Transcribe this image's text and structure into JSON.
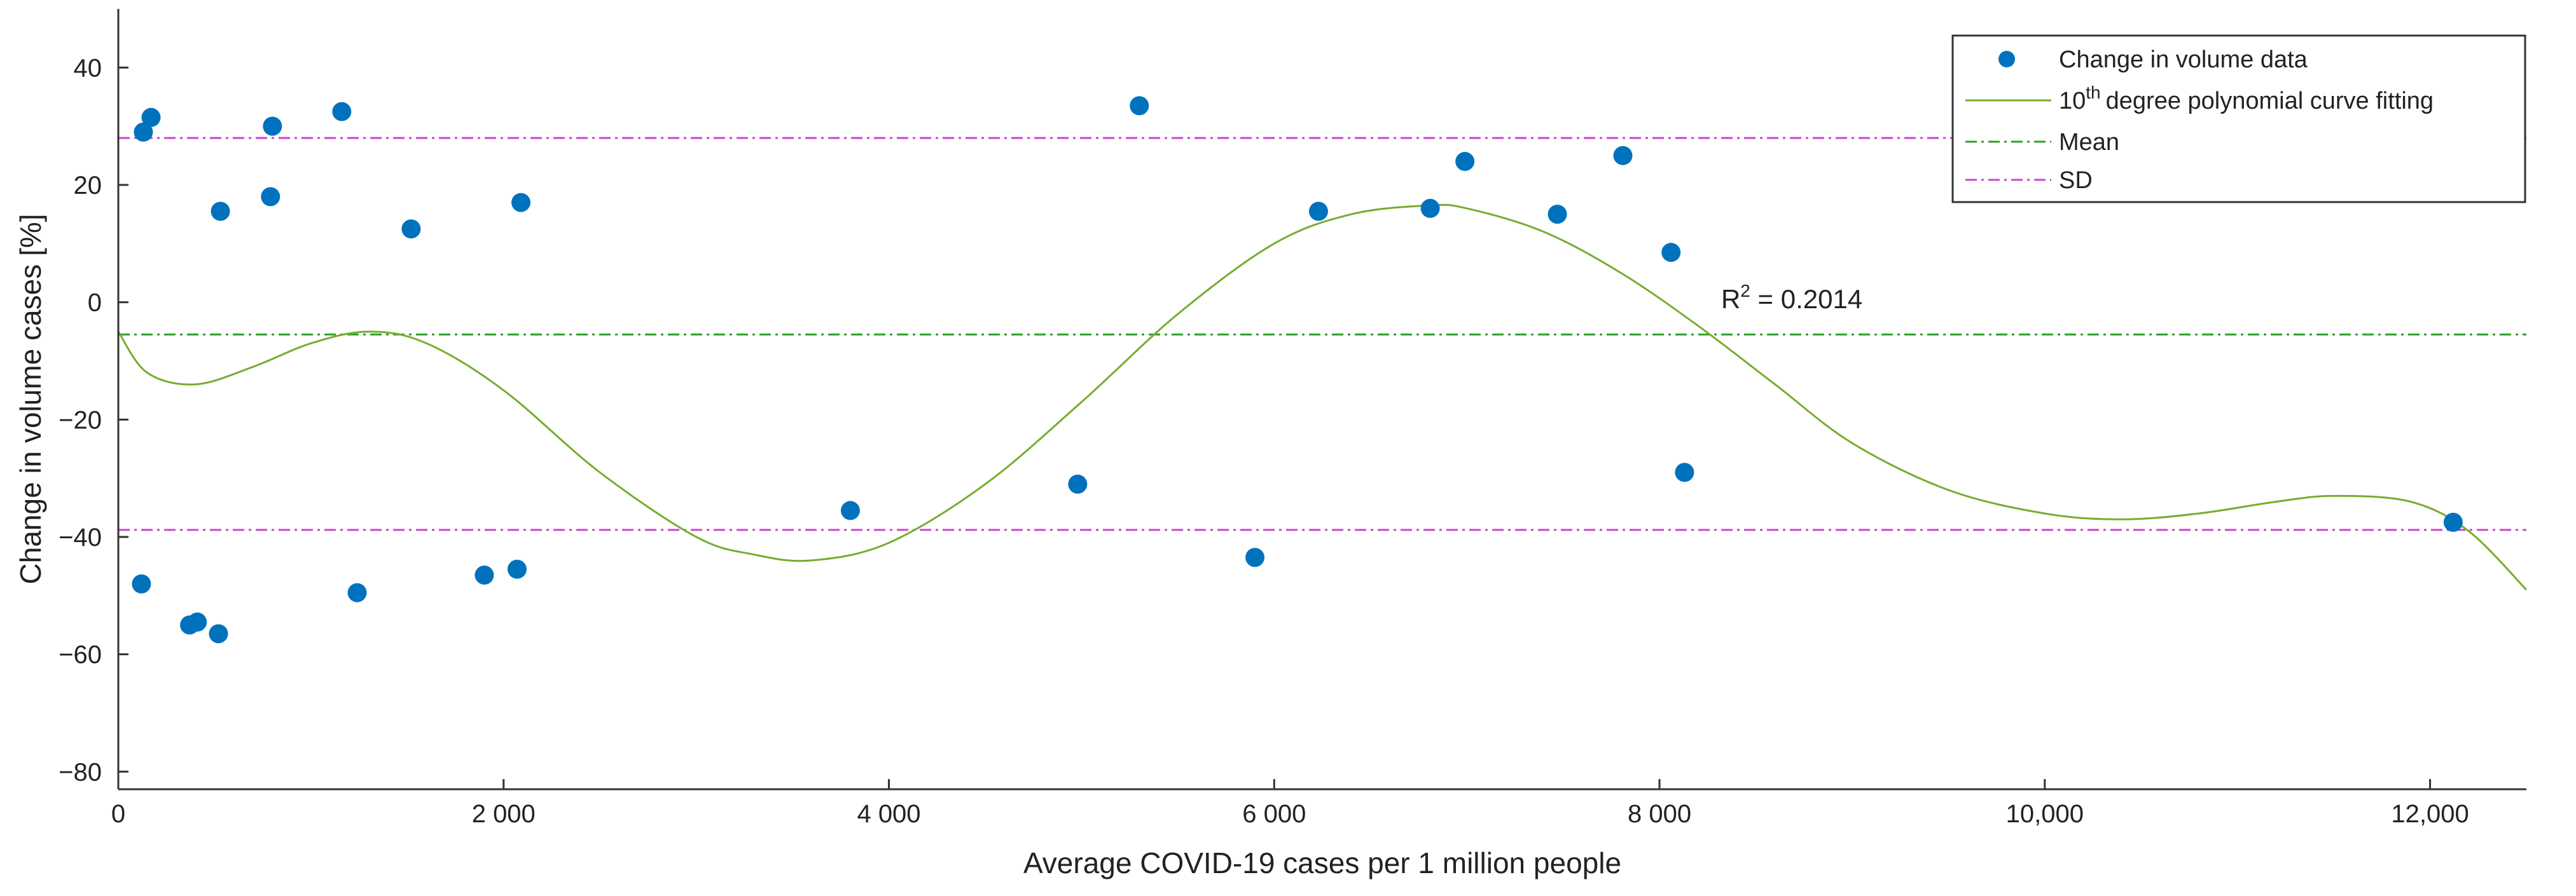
{
  "chart_data": {
    "type": "scatter",
    "xlabel": "Average COVID-19 cases per 1 million people",
    "ylabel": "Change in volume cases [%]",
    "xlim": [
      0,
      12500
    ],
    "ylim": [
      -83,
      50
    ],
    "x_ticks": [
      0,
      2000,
      4000,
      6000,
      8000,
      10000,
      12000
    ],
    "x_tick_labels": [
      "0",
      "2 000",
      "4 000",
      "6 000",
      "8 000",
      "10,000",
      "12,000"
    ],
    "y_ticks": [
      40,
      20,
      0,
      -20,
      -40,
      -60,
      -80
    ],
    "y_tick_labels": [
      "40",
      "20",
      "0",
      "−20",
      "−40",
      "−60",
      "−80"
    ],
    "grid": false,
    "legend_position": "top-right",
    "colors": {
      "points": "#0072BD",
      "fit": "#77AC30",
      "mean": "#2CA02C",
      "sd": "#CC44CC",
      "axis": "#333333"
    },
    "series": [
      {
        "name": "Change in volume data",
        "kind": "points",
        "x": [
          130,
          170,
          120,
          530,
          800,
          790,
          1160,
          1520,
          2090,
          2070,
          1900,
          1240,
          370,
          410,
          520,
          3800,
          4980,
          5300,
          5900,
          6230,
          6810,
          6990,
          7470,
          7810,
          8060,
          8130,
          12120
        ],
        "y": [
          29,
          31.5,
          -48,
          15.5,
          30,
          18,
          32.5,
          12.5,
          17,
          -45.5,
          -46.5,
          -49.5,
          -55,
          -54.5,
          -56.5,
          -35.5,
          -31,
          33.5,
          -43.5,
          15.5,
          16,
          24,
          15,
          25,
          8.5,
          -29,
          -37.5
        ]
      },
      {
        "name": "degree polynomial curve fitting",
        "name_superscript": "th",
        "name_prefix": "10",
        "kind": "curve",
        "x": [
          0,
          150,
          400,
          700,
          1000,
          1300,
          1600,
          2000,
          2500,
          3000,
          3300,
          3600,
          4000,
          4500,
          5000,
          5500,
          6000,
          6400,
          6800,
          7000,
          7400,
          7800,
          8200,
          8600,
          9000,
          9500,
          10000,
          10400,
          10800,
          11200,
          11500,
          11900,
          12200,
          12500
        ],
        "y": [
          -5,
          -12,
          -14,
          -11,
          -7,
          -5,
          -7,
          -15,
          -29,
          -40,
          -43,
          -44,
          -41,
          -31,
          -17,
          -2,
          10,
          15,
          16.5,
          16,
          12,
          5,
          -4,
          -14,
          -24,
          -32,
          -36,
          -37,
          -36,
          -34,
          -33,
          -34,
          -39,
          -49
        ]
      },
      {
        "name": "Mean",
        "kind": "hline",
        "y": -5.5
      },
      {
        "name": "SD",
        "kind": "hline",
        "y_values": [
          28,
          -38.8
        ]
      }
    ],
    "annotation": {
      "base": "R",
      "superscript": "2",
      "text": " = 0.2014",
      "x": 8320,
      "y": -1
    }
  }
}
